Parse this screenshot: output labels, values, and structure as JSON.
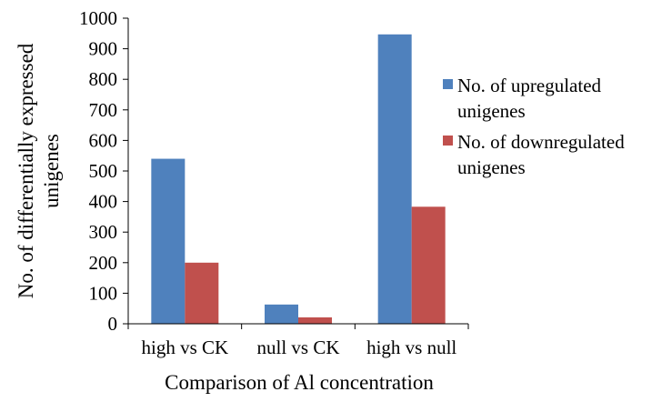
{
  "chart_data": {
    "type": "bar",
    "title": "",
    "xlabel": "Comparison of Al concentration",
    "ylabel": "No. of differentially expressed unigenes",
    "ylabel_lines": [
      "No. of differentially expressed",
      "unigenes"
    ],
    "ylim": [
      0,
      1000
    ],
    "yticks": [
      0,
      100,
      200,
      300,
      400,
      500,
      600,
      700,
      800,
      900,
      1000
    ],
    "categories": [
      "high vs CK",
      "null vs CK",
      "high vs null"
    ],
    "series": [
      {
        "name": "No. of upregulated unigenes",
        "legend_lines": [
          "No. of upregulated",
          "unigenes"
        ],
        "color": "#4f81bd",
        "values": [
          540,
          63,
          947
        ]
      },
      {
        "name": "No. of downregulated unigenes",
        "legend_lines": [
          "No. of downregulated",
          "unigenes"
        ],
        "color": "#c0504d",
        "values": [
          200,
          21,
          383
        ]
      }
    ],
    "grid": false,
    "legend_position": "right"
  }
}
